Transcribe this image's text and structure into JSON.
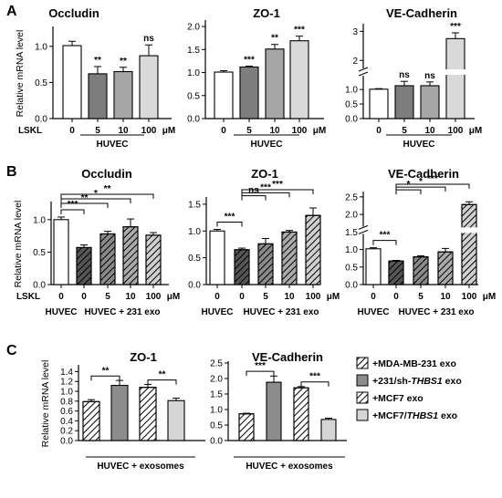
{
  "panels": [
    {
      "id": "A",
      "label": "A"
    },
    {
      "id": "B",
      "label": "B"
    },
    {
      "id": "C",
      "label": "C"
    }
  ],
  "units": {
    "micromolar": "μM"
  },
  "chart_data": [
    {
      "panel": "A",
      "type": "bar",
      "title": "Occludin",
      "ylabel": "Relative mRNA level",
      "ylim": [
        0,
        1.25
      ],
      "yticks": [
        "0.0",
        "0.5",
        "1.0"
      ],
      "ytick_values": [
        0,
        0.5,
        1.0
      ],
      "categories": [
        "0",
        "5",
        "10",
        "100"
      ],
      "values": [
        1.01,
        0.62,
        0.65,
        0.87
      ],
      "errors": [
        0.06,
        0.1,
        0.06,
        0.15
      ],
      "significance": [
        "",
        "**",
        "**",
        "ns"
      ],
      "fills": [
        "#ffffff",
        "#7d7d7d",
        "#a6a6a6",
        "#d9d9d9"
      ],
      "hatch": [
        false,
        false,
        false,
        false
      ],
      "row_label": "LSKL",
      "group_label": "HUVEC",
      "unit": "μM"
    },
    {
      "panel": "A",
      "type": "bar",
      "title": "ZO-1",
      "ylabel": "",
      "ylim": [
        0,
        2.1
      ],
      "yticks": [
        "0.0",
        "0.5",
        "1.0",
        "1.5",
        "2.0"
      ],
      "ytick_values": [
        0,
        0.5,
        1.0,
        1.5,
        2.0
      ],
      "categories": [
        "0",
        "5",
        "10",
        "100"
      ],
      "values": [
        1.01,
        1.12,
        1.51,
        1.69
      ],
      "errors": [
        0.03,
        0.02,
        0.1,
        0.1
      ],
      "significance": [
        "",
        "***",
        "**",
        "***"
      ],
      "fills": [
        "#ffffff",
        "#7d7d7d",
        "#a6a6a6",
        "#d9d9d9"
      ],
      "hatch": [
        false,
        false,
        false,
        false
      ],
      "group_label": "HUVEC",
      "unit": "μM"
    },
    {
      "panel": "A",
      "type": "bar",
      "title": "VE-Cadherin",
      "ylabel": "",
      "ylim": [
        0,
        3.2
      ],
      "y_axis_broken": true,
      "yticks": [
        "0.0",
        "0.5",
        "1.0",
        "2",
        "3"
      ],
      "ytick_values": [
        0,
        0.5,
        1.0,
        2,
        3
      ],
      "categories": [
        "0",
        "5",
        "10",
        "100"
      ],
      "values": [
        1.01,
        1.13,
        1.13,
        2.75
      ],
      "errors": [
        0.02,
        0.15,
        0.13,
        0.2
      ],
      "significance": [
        "",
        "ns",
        "ns",
        "***"
      ],
      "fills": [
        "#ffffff",
        "#7d7d7d",
        "#a6a6a6",
        "#d9d9d9"
      ],
      "hatch": [
        false,
        false,
        false,
        false
      ],
      "group_label": "HUVEC",
      "unit": "μM"
    },
    {
      "panel": "B",
      "type": "bar",
      "title": "Occludin",
      "ylabel": "Relative mRNA level",
      "ylim": [
        0,
        1.25
      ],
      "yticks": [
        "0.0",
        "0.5",
        "1.0"
      ],
      "ytick_values": [
        0,
        0.5,
        1.0
      ],
      "categories": [
        "0",
        "0",
        "5",
        "10",
        "100"
      ],
      "values": [
        1.0,
        0.57,
        0.78,
        0.89,
        0.76
      ],
      "errors": [
        0.04,
        0.04,
        0.04,
        0.12,
        0.04
      ],
      "fills": [
        "#ffffff",
        "#555555",
        "#8a8a8a",
        "#aaaaaa",
        "#d0d0d0"
      ],
      "hatch": [
        false,
        true,
        true,
        true,
        true
      ],
      "comparisons": [
        {
          "from": 0,
          "to": 1,
          "label": "***"
        },
        {
          "from": 0,
          "to": 2,
          "label": "**"
        },
        {
          "from": 0,
          "to": 3,
          "label": "*"
        },
        {
          "from": 0,
          "to": 4,
          "label": "**"
        }
      ],
      "row_label": "LSKL",
      "group_left": "HUVEC",
      "group_right": "HUVEC + 231 exo",
      "unit": "μM"
    },
    {
      "panel": "B",
      "type": "bar",
      "title": "ZO-1",
      "ylabel": "",
      "ylim": [
        0,
        1.6
      ],
      "yticks": [
        "0.0",
        "0.5",
        "1.0",
        "1.5"
      ],
      "ytick_values": [
        0,
        0.5,
        1.0,
        1.5
      ],
      "categories": [
        "0",
        "0",
        "5",
        "10",
        "100"
      ],
      "values": [
        1.0,
        0.65,
        0.76,
        0.98,
        1.29
      ],
      "errors": [
        0.03,
        0.03,
        0.1,
        0.03,
        0.14
      ],
      "fills": [
        "#ffffff",
        "#555555",
        "#8a8a8a",
        "#aaaaaa",
        "#d0d0d0"
      ],
      "hatch": [
        false,
        true,
        true,
        true,
        true
      ],
      "comparisons": [
        {
          "from": 0,
          "to": 1,
          "label": "***"
        },
        {
          "from": 1,
          "to": 2,
          "label": "ns"
        },
        {
          "from": 1,
          "to": 3,
          "label": "***"
        },
        {
          "from": 1,
          "to": 4,
          "label": "***"
        }
      ],
      "group_left": "HUVEC",
      "group_right": "HUVEC + 231 exo",
      "unit": "μM"
    },
    {
      "panel": "B",
      "type": "bar",
      "title": "VE-Cadherin",
      "ylabel": "",
      "ylim": [
        0,
        2.6
      ],
      "y_axis_broken": true,
      "yticks": [
        "0.0",
        "0.5",
        "1.0",
        "1.5",
        "2.0",
        "2.5"
      ],
      "ytick_values": [
        0,
        0.5,
        1.0,
        1.5,
        2.0,
        2.5
      ],
      "categories": [
        "0",
        "0",
        "5",
        "10",
        "100"
      ],
      "values": [
        1.02,
        0.67,
        0.79,
        0.93,
        2.28
      ],
      "errors": [
        0.03,
        0.02,
        0.03,
        0.1,
        0.08
      ],
      "fills": [
        "#ffffff",
        "#555555",
        "#8a8a8a",
        "#aaaaaa",
        "#d0d0d0"
      ],
      "hatch": [
        false,
        true,
        true,
        true,
        true
      ],
      "comparisons": [
        {
          "from": 0,
          "to": 1,
          "label": "***"
        },
        {
          "from": 1,
          "to": 2,
          "label": "*"
        },
        {
          "from": 1,
          "to": 3,
          "label": "*"
        },
        {
          "from": 1,
          "to": 4,
          "label": "***"
        }
      ],
      "group_left": "HUVEC",
      "group_right": "HUVEC + 231 exo",
      "unit": "μM"
    },
    {
      "panel": "C",
      "type": "bar",
      "title": "ZO-1",
      "ylabel": "Relative mRNA level",
      "ylim": [
        0,
        1.5
      ],
      "yticks": [
        "0.0",
        "0.2",
        "0.4",
        "0.6",
        "0.8",
        "1.0",
        "1.2",
        "1.4"
      ],
      "ytick_values": [
        0,
        0.2,
        0.4,
        0.6,
        0.8,
        1.0,
        1.2,
        1.4
      ],
      "categories": [
        "+MDA-MB-231 exo",
        "+231/sh-THBS1 exo",
        "+MCF7 exo",
        "+MCF7/THBS1 exo"
      ],
      "values": [
        0.79,
        1.12,
        1.08,
        0.81
      ],
      "errors": [
        0.04,
        0.1,
        0.06,
        0.05
      ],
      "fills": [
        "#ffffff",
        "#8c8c8c",
        "#ffffff",
        "#d6d6d6"
      ],
      "hatch": [
        true,
        false,
        true,
        false
      ],
      "comparisons": [
        {
          "from": 0,
          "to": 1,
          "label": "**"
        },
        {
          "from": 2,
          "to": 3,
          "label": "**"
        }
      ],
      "group_label": "HUVEC + exosomes"
    },
    {
      "panel": "C",
      "type": "bar",
      "title": "VE-Cadherin",
      "ylabel": "",
      "ylim": [
        0,
        2.5
      ],
      "yticks": [
        "0.0",
        "0.5",
        "1.0",
        "1.5",
        "2.0",
        "2.5"
      ],
      "ytick_values": [
        0,
        0.5,
        1.0,
        1.5,
        2.0,
        2.5
      ],
      "categories": [
        "+MDA-MB-231 exo",
        "+231/sh-THBS1 exo",
        "+MCF7 exo",
        "+MCF7/THBS1 exo"
      ],
      "values": [
        0.86,
        1.88,
        1.7,
        0.68
      ],
      "errors": [
        0.02,
        0.2,
        0.04,
        0.04
      ],
      "fills": [
        "#ffffff",
        "#8c8c8c",
        "#ffffff",
        "#d6d6d6"
      ],
      "hatch": [
        true,
        false,
        true,
        false
      ],
      "comparisons": [
        {
          "from": 0,
          "to": 1,
          "label": "***"
        },
        {
          "from": 2,
          "to": 3,
          "label": "***"
        }
      ],
      "group_label": "HUVEC + exosomes"
    }
  ],
  "legend": [
    {
      "label": "+MDA-MB-231 exo",
      "fill": "#ffffff",
      "hatch": true,
      "italic": ""
    },
    {
      "label": "+231/sh-",
      "italic": "THBS1",
      "suffix": " exo",
      "fill": "#8c8c8c",
      "hatch": false
    },
    {
      "label": "+MCF7 exo",
      "fill": "#ffffff",
      "hatch": true,
      "italic": ""
    },
    {
      "label": "+MCF7/",
      "italic": "THBS1",
      "suffix": " exo",
      "fill": "#d6d6d6",
      "hatch": false
    }
  ]
}
